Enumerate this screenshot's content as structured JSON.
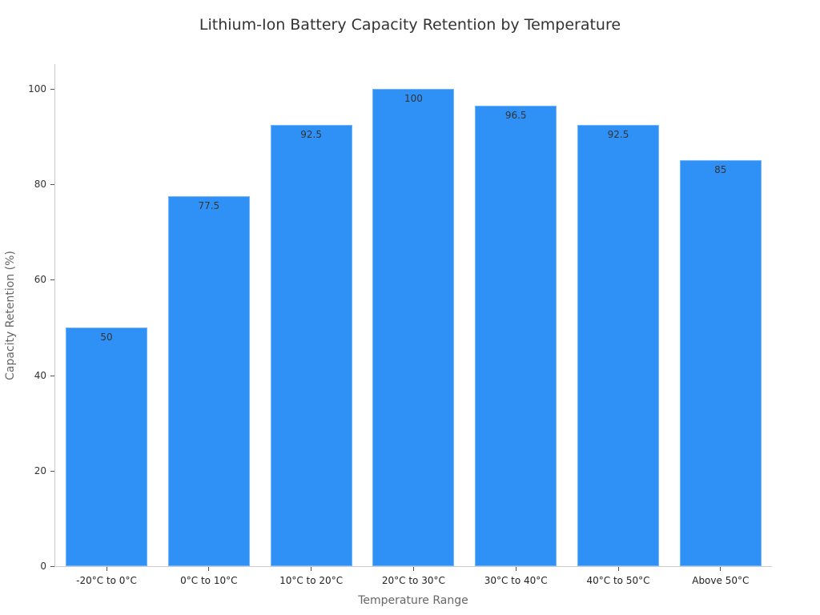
{
  "chart_data": {
    "type": "bar",
    "title": "Lithium-Ion Battery Capacity Retention by Temperature",
    "xlabel": "Temperature Range",
    "ylabel": "Capacity Retention (%)",
    "categories": [
      "-20°C to 0°C",
      "0°C to 10°C",
      "10°C to 20°C",
      "20°C to 30°C",
      "30°C to 40°C",
      "40°C to 50°C",
      "Above 50°C"
    ],
    "values": [
      50,
      77.5,
      92.5,
      100,
      96.5,
      92.5,
      85
    ],
    "value_labels": [
      "50",
      "77.5",
      "92.5",
      "100",
      "96.5",
      "92.5",
      "85"
    ],
    "ylim": [
      0,
      105
    ],
    "yticks": [
      "0",
      "20",
      "40",
      "60",
      "80",
      "100"
    ],
    "ytick_values": [
      0,
      20,
      40,
      60,
      80,
      100
    ],
    "grid": false,
    "legend": null,
    "bar_color": "#2f91f6"
  }
}
